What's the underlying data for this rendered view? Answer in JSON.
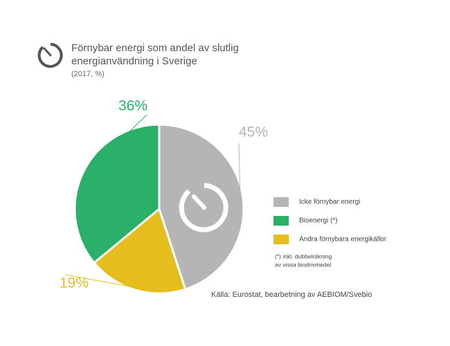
{
  "chart_data": {
    "type": "pie",
    "title": [
      "Förnybar energi som andel av slutlig",
      "energianvändning i Sverige"
    ],
    "subtitle": "(2017, %)",
    "categories": [
      "Icke förnybar energi",
      "Bioenergi  (*)",
      "Andra förnybara energikällor"
    ],
    "values": [
      45,
      36,
      19
    ],
    "value_labels": [
      "45%",
      "36%",
      "19%"
    ],
    "colors": [
      "#b5b5b5",
      "#2bb06a",
      "#e5be1d"
    ],
    "notes": [
      "(*) inkl. dubbelräkning",
      "av vissa biodrivmedel"
    ],
    "source": "Källa: Eurostat, bearbetning av AEBIOM/Svebio"
  }
}
